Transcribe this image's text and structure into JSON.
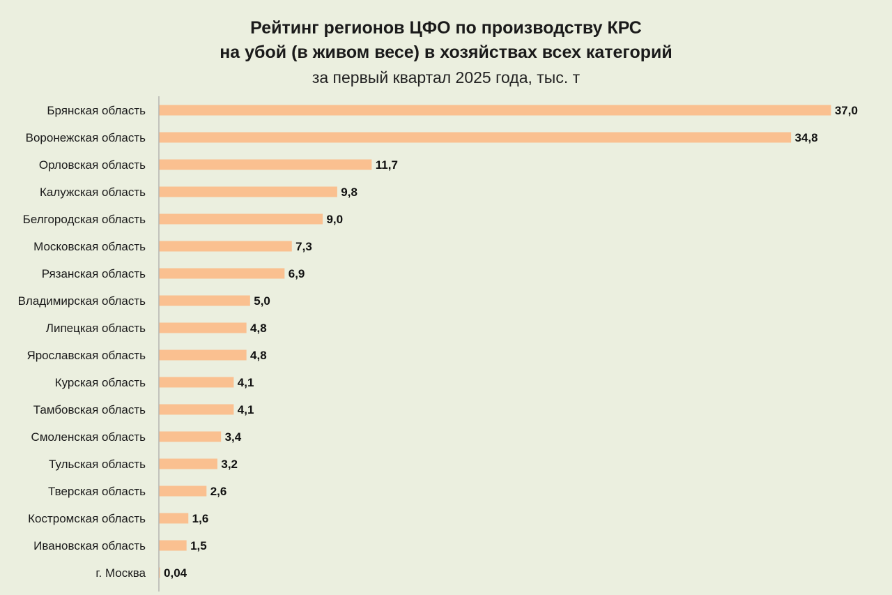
{
  "chart_data": {
    "type": "bar",
    "orientation": "horizontal",
    "title": "Рейтинг регионов ЦФО по производству КРС",
    "title_line2": "на убой (в живом весе) в хозяйствах всех категорий",
    "subtitle": "за первый квартал 2025 года, тыс. т",
    "xlabel": "",
    "ylabel": "",
    "xlim": [
      0,
      37
    ],
    "grid": false,
    "legend": "none",
    "bar_color": "#fac090",
    "background_color": "#ebefdf",
    "categories": [
      "Брянская область",
      "Воронежская область",
      "Орловская область",
      "Калужская область",
      "Белгородская область",
      "Московская область",
      "Рязанская область",
      "Владимирская область",
      "Липецкая область",
      "Ярославская область",
      "Курская область",
      "Тамбовская область",
      "Смоленская область",
      "Тульская область",
      "Тверская область",
      "Костромская область",
      "Ивановская область",
      "г. Москва"
    ],
    "values": [
      37.0,
      34.8,
      11.7,
      9.8,
      9.0,
      7.3,
      6.9,
      5.0,
      4.8,
      4.8,
      4.1,
      4.1,
      3.4,
      3.2,
      2.6,
      1.6,
      1.5,
      0.04
    ],
    "value_labels": [
      "37,0",
      "34,8",
      "11,7",
      "9,8",
      "9,0",
      "7,3",
      "6,9",
      "5,0",
      "4,8",
      "4,8",
      "4,1",
      "4,1",
      "3,4",
      "3,2",
      "2,6",
      "1,6",
      "1,5",
      "0,04"
    ]
  }
}
